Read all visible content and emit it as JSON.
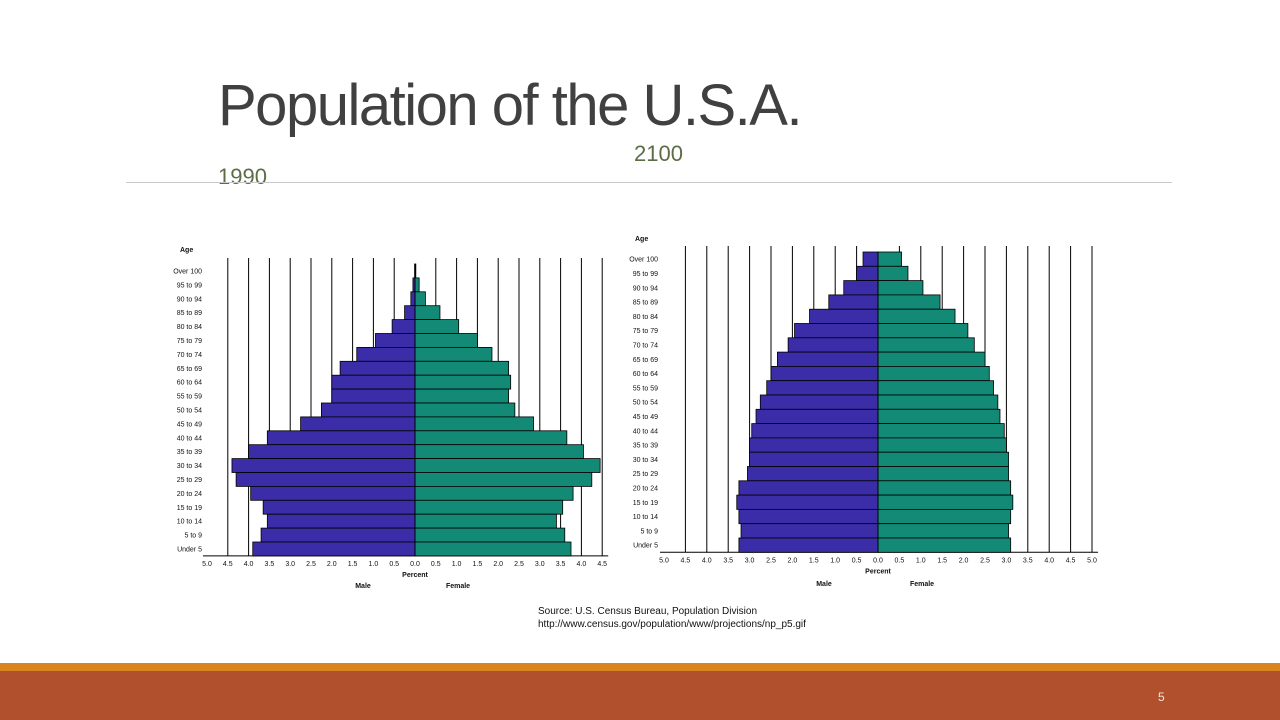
{
  "slide": {
    "title": "Population of the U.S.A.",
    "label_left": "1990",
    "label_right": "2100",
    "source_line1": "Source: U.S. Census Bureau, Population Division",
    "source_line2": "http://www.census.gov/population/www/projections/np_p5.gif",
    "page_number": "5"
  },
  "colors": {
    "male": "#3b2ca8",
    "female": "#138a76",
    "title": "#404040",
    "subtitle": "#5a6e45",
    "footer": "#b0502c",
    "footer_accent": "#d9841f"
  },
  "chart_data": [
    {
      "type": "bar",
      "orientation": "horizontal",
      "layout": "population-pyramid",
      "y_title": "Age",
      "x_title": "Percent",
      "male_label": "Male",
      "female_label": "Female",
      "male_ticks": [
        "5.0",
        "4.5",
        "4.0",
        "3.5",
        "3.0",
        "2.5",
        "2.0",
        "1.5",
        "1.0",
        "0.5"
      ],
      "female_ticks": [
        "0.0",
        "0.5",
        "1.0",
        "1.5",
        "2.0",
        "2.5",
        "3.0",
        "3.5",
        "4.0",
        "4.5"
      ],
      "xlim": [
        -5,
        4.5
      ],
      "categories": [
        "Over 100",
        "95 to 99",
        "90 to 94",
        "85 to 89",
        "80 to 84",
        "75 to 79",
        "70 to 74",
        "65 to 69",
        "60 to 64",
        "55 to 59",
        "50 to 54",
        "45 to 49",
        "40 to 44",
        "35 to 39",
        "30 to 34",
        "25 to 29",
        "20 to 24",
        "15 to 19",
        "10 to 14",
        "5 to 9",
        "Under 5"
      ],
      "series": [
        {
          "name": "Male",
          "values": [
            0.01,
            0.05,
            0.1,
            0.25,
            0.55,
            0.95,
            1.4,
            1.8,
            2.0,
            2.0,
            2.25,
            2.75,
            3.55,
            4.0,
            4.4,
            4.3,
            3.95,
            3.65,
            3.55,
            3.7,
            3.9
          ]
        },
        {
          "name": "Female",
          "values": [
            0.02,
            0.1,
            0.25,
            0.6,
            1.05,
            1.5,
            1.85,
            2.25,
            2.3,
            2.25,
            2.4,
            2.85,
            3.65,
            4.05,
            4.45,
            4.25,
            3.8,
            3.55,
            3.4,
            3.6,
            3.75
          ]
        }
      ]
    },
    {
      "type": "bar",
      "orientation": "horizontal",
      "layout": "population-pyramid",
      "y_title": "Age",
      "x_title": "Percent",
      "male_label": "Male",
      "female_label": "Female",
      "male_ticks": [
        "5.0",
        "4.5",
        "4.0",
        "3.5",
        "3.0",
        "2.5",
        "2.0",
        "1.5",
        "1.0",
        "0.5"
      ],
      "female_ticks": [
        "0.0",
        "0.5",
        "1.0",
        "1.5",
        "2.0",
        "2.5",
        "3.0",
        "3.5",
        "4.0",
        "4.5",
        "5.0"
      ],
      "xlim": [
        -5,
        5
      ],
      "categories": [
        "Over 100",
        "95 to 99",
        "90 to 94",
        "85 to 89",
        "80 to 84",
        "75 to 79",
        "70 to 74",
        "65 to 69",
        "60 to 64",
        "55 to 59",
        "50 to 54",
        "45 to 49",
        "40 to 44",
        "35 to 39",
        "30 to 34",
        "25 to 29",
        "20 to 24",
        "15 to 19",
        "10 to 14",
        "5 to 9",
        "Under 5"
      ],
      "series": [
        {
          "name": "Male",
          "values": [
            0.35,
            0.5,
            0.8,
            1.15,
            1.6,
            1.95,
            2.1,
            2.35,
            2.5,
            2.6,
            2.75,
            2.85,
            2.95,
            3.0,
            3.0,
            3.05,
            3.25,
            3.3,
            3.25,
            3.2,
            3.25
          ]
        },
        {
          "name": "Female",
          "values": [
            0.55,
            0.7,
            1.05,
            1.45,
            1.8,
            2.1,
            2.25,
            2.5,
            2.6,
            2.7,
            2.8,
            2.85,
            2.95,
            3.0,
            3.05,
            3.05,
            3.1,
            3.15,
            3.1,
            3.05,
            3.1
          ]
        }
      ]
    }
  ]
}
